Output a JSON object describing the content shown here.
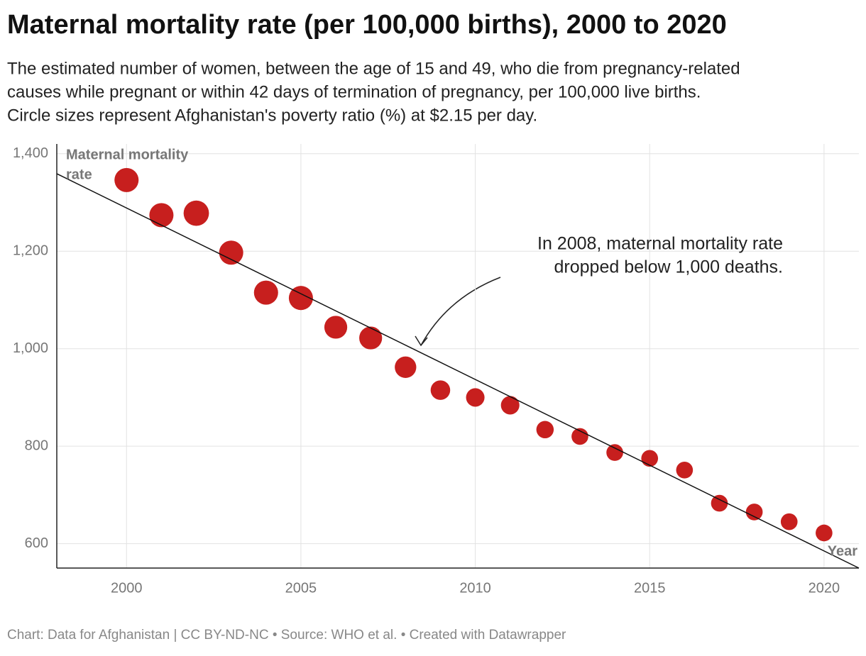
{
  "chart_data": {
    "type": "bubble",
    "title": "Maternal mortality rate (per 100,000 births), 2000 to 2020",
    "subtitle": [
      "The estimated number of women, between the age of 15 and 49, who die from pregnancy-related",
      "causes while pregnant or within 42 days of termination of pregnancy, per 100,000 live births.",
      "Circle sizes represent Afghanistan's poverty ratio (%) at $2.15 per day."
    ],
    "y_label": [
      "Maternal mortality",
      "rate"
    ],
    "x_label": "Year",
    "annotation": [
      "In 2008, maternal mortality rate",
      "dropped below 1,000 deaths."
    ],
    "footer": "Chart: Data for Afghanistan | CC BY-ND-NC • Source: WHO et al. • Created with Datawrapper",
    "x": [
      2000,
      2001,
      2002,
      2003,
      2004,
      2005,
      2006,
      2007,
      2008,
      2009,
      2010,
      2011,
      2012,
      2013,
      2014,
      2015,
      2016,
      2017,
      2018,
      2019,
      2020
    ],
    "values": [
      1346,
      1274,
      1278,
      1197,
      1115,
      1104,
      1044,
      1022,
      962,
      915,
      900,
      884,
      834,
      820,
      787,
      775,
      751,
      683,
      665,
      645,
      622
    ],
    "sizes": [
      29,
      29,
      32,
      29,
      29,
      29,
      26,
      26,
      23,
      19,
      17,
      17,
      15,
      14,
      14,
      14,
      14,
      14,
      14,
      14,
      14
    ],
    "color": "#c71f1e",
    "trendline": {
      "x": [
        1998,
        2021
      ],
      "values": [
        1359,
        550
      ]
    },
    "xlim": [
      1998,
      2021
    ],
    "ylim": [
      550,
      1420
    ],
    "xticks": [
      2000,
      2005,
      2010,
      2015,
      2020
    ],
    "yticks": [
      {
        "value": 600,
        "label": "600"
      },
      {
        "value": 800,
        "label": "800"
      },
      {
        "value": 1000,
        "label": "1,000"
      },
      {
        "value": 1200,
        "label": "1,200"
      },
      {
        "value": 1400,
        "label": "1,400"
      }
    ],
    "grid": true
  }
}
